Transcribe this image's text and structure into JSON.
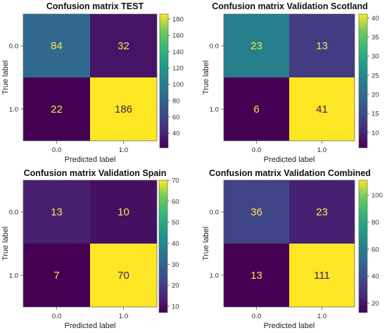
{
  "chart_data": [
    {
      "type": "heatmap",
      "title": "Confusion matrix TEST",
      "xlabel": "Predicted label",
      "ylabel": "True label",
      "x_ticks": [
        "0.0",
        "1.0"
      ],
      "y_ticks": [
        "0.0",
        "1.0"
      ],
      "matrix": [
        [
          84,
          32
        ],
        [
          22,
          186
        ]
      ],
      "colorbar": {
        "range": [
          22,
          186
        ],
        "ticks": [
          40,
          60,
          80,
          100,
          120,
          140,
          160,
          180
        ]
      }
    },
    {
      "type": "heatmap",
      "title": "Confusion matrix Validation Scotland",
      "xlabel": "Predicted label",
      "ylabel": "True label",
      "x_ticks": [
        "0.0",
        "1.0"
      ],
      "y_ticks": [
        "0.0",
        "1.0"
      ],
      "matrix": [
        [
          23,
          13
        ],
        [
          6,
          41
        ]
      ],
      "colorbar": {
        "range": [
          6,
          41
        ],
        "ticks": [
          10,
          15,
          20,
          25,
          30,
          35,
          40
        ]
      }
    },
    {
      "type": "heatmap",
      "title": "Confusion matrix Validation Spain",
      "xlabel": "Predicted label",
      "ylabel": "True label",
      "x_ticks": [
        "0.0",
        "1.0"
      ],
      "y_ticks": [
        "0.0",
        "1.0"
      ],
      "matrix": [
        [
          13,
          10
        ],
        [
          7,
          70
        ]
      ],
      "colorbar": {
        "range": [
          7,
          70
        ],
        "ticks": [
          10,
          20,
          30,
          40,
          50,
          60,
          70
        ]
      }
    },
    {
      "type": "heatmap",
      "title": "Confusion matrix Validation Combined",
      "xlabel": "Predicted label",
      "ylabel": "True label",
      "x_ticks": [
        "0.0",
        "1.0"
      ],
      "y_ticks": [
        "0.0",
        "1.0"
      ],
      "matrix": [
        [
          36,
          23
        ],
        [
          13,
          111
        ]
      ],
      "colorbar": {
        "range": [
          13,
          111
        ],
        "ticks": [
          20,
          40,
          60,
          80,
          100
        ]
      }
    }
  ],
  "colormap": "viridis"
}
